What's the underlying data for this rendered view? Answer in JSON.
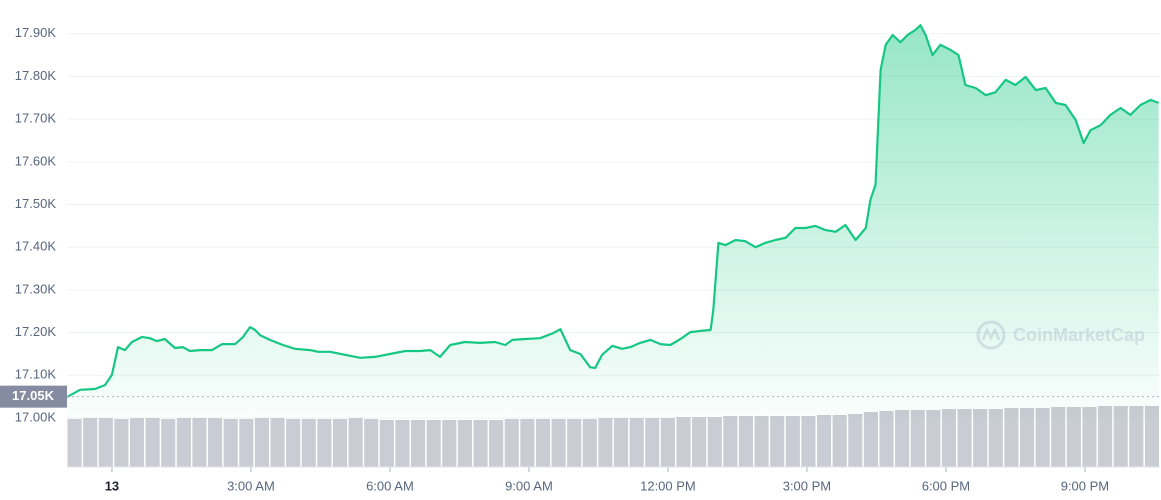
{
  "chart_data": {
    "type": "area",
    "x": [
      -0.97,
      -0.69,
      -0.37,
      -0.15,
      0,
      0.13,
      0.28,
      0.43,
      0.65,
      0.82,
      0.97,
      1.14,
      1.36,
      1.53,
      1.68,
      1.9,
      2.16,
      2.38,
      2.66,
      2.83,
      2.98,
      3.09,
      3.2,
      3.41,
      3.69,
      3.95,
      4.28,
      4.45,
      4.71,
      5.03,
      5.36,
      5.68,
      6,
      6.33,
      6.65,
      6.87,
      7.08,
      7.3,
      7.62,
      7.95,
      8.27,
      8.49,
      8.64,
      8.92,
      9.24,
      9.53,
      9.68,
      9.89,
      10.11,
      10.32,
      10.43,
      10.58,
      10.8,
      11.01,
      11.19,
      11.4,
      11.62,
      11.84,
      12.05,
      12.27,
      12.48,
      12.7,
      12.92,
      12.98,
      13.09,
      13.24,
      13.46,
      13.67,
      13.89,
      14.1,
      14.32,
      14.54,
      14.75,
      14.97,
      15.18,
      15.4,
      15.62,
      15.83,
      16.05,
      16.27,
      16.37,
      16.48,
      16.59,
      16.7,
      16.85,
      17.02,
      17.17,
      17.34,
      17.45,
      17.56,
      17.71,
      17.88,
      18.1,
      18.27,
      18.42,
      18.64,
      18.86,
      19.07,
      19.29,
      19.5,
      19.72,
      19.94,
      20.15,
      20.37,
      20.58,
      20.8,
      20.97,
      21.12,
      21.34,
      21.55,
      21.77,
      21.98,
      22.2,
      22.42,
      22.59
    ],
    "values": [
      17049,
      17066,
      17068,
      17077,
      17101,
      17166,
      17159,
      17178,
      17190,
      17187,
      17180,
      17185,
      17164,
      17166,
      17157,
      17159,
      17159,
      17173,
      17173,
      17190,
      17213,
      17206,
      17194,
      17183,
      17171,
      17162,
      17159,
      17155,
      17155,
      17148,
      17141,
      17143,
      17150,
      17157,
      17157,
      17159,
      17143,
      17171,
      17178,
      17176,
      17178,
      17171,
      17183,
      17185,
      17187,
      17199,
      17208,
      17159,
      17150,
      17119,
      17117,
      17148,
      17169,
      17162,
      17166,
      17176,
      17183,
      17173,
      17171,
      17185,
      17201,
      17204,
      17206,
      17253,
      17410,
      17405,
      17417,
      17414,
      17400,
      17410,
      17417,
      17422,
      17445,
      17445,
      17450,
      17440,
      17436,
      17452,
      17417,
      17445,
      17511,
      17546,
      17815,
      17874,
      17897,
      17880,
      17897,
      17909,
      17920,
      17897,
      17850,
      17874,
      17862,
      17850,
      17780,
      17773,
      17756,
      17763,
      17792,
      17780,
      17799,
      17768,
      17773,
      17738,
      17733,
      17698,
      17644,
      17674,
      17686,
      17710,
      17726,
      17710,
      17733,
      17745,
      17738
    ],
    "color": "#16c784",
    "xlim": [
      -0.97,
      22.62
    ],
    "xticks": [
      {
        "value": 0,
        "label": "13"
      },
      {
        "value": 3,
        "label": "3:00 AM"
      },
      {
        "value": 6,
        "label": "6:00 AM"
      },
      {
        "value": 9,
        "label": "9:00 AM"
      },
      {
        "value": 12,
        "label": "12:00 PM"
      },
      {
        "value": 15,
        "label": "3:00 PM"
      },
      {
        "value": 18,
        "label": "6:00 PM"
      },
      {
        "value": 21,
        "label": "9:00 PM"
      }
    ],
    "ylim": [
      17000,
      17979
    ],
    "yticks": [
      {
        "value": 17000,
        "label": "17.00K"
      },
      {
        "value": 17100,
        "label": "17.10K"
      },
      {
        "value": 17200,
        "label": "17.20K"
      },
      {
        "value": 17300,
        "label": "17.30K"
      },
      {
        "value": 17400,
        "label": "17.40K"
      },
      {
        "value": 17500,
        "label": "17.50K"
      },
      {
        "value": 17600,
        "label": "17.60K"
      },
      {
        "value": 17700,
        "label": "17.70K"
      },
      {
        "value": 17800,
        "label": "17.80K"
      },
      {
        "value": 17900,
        "label": "17.90K"
      }
    ],
    "reference": {
      "value": 17050,
      "label": "17.05K"
    },
    "grid": true,
    "volume": {
      "color": "#c9ccd3",
      "values": [
        48,
        49,
        49,
        48,
        49,
        49,
        48,
        49,
        49,
        49,
        48,
        48,
        49,
        49,
        48,
        48,
        48,
        48,
        49,
        48,
        47,
        47,
        47,
        47,
        47,
        47,
        47,
        47,
        48,
        48,
        48,
        48,
        48,
        48,
        49,
        49,
        49,
        49,
        49,
        50,
        50,
        50,
        51,
        51,
        51,
        51,
        51,
        51,
        52,
        52,
        53,
        55,
        56,
        57,
        57,
        57,
        58,
        58,
        58,
        58,
        59,
        59,
        59,
        60,
        60,
        60,
        61,
        61,
        61,
        61
      ]
    },
    "watermark": "CoinMarketCap"
  }
}
